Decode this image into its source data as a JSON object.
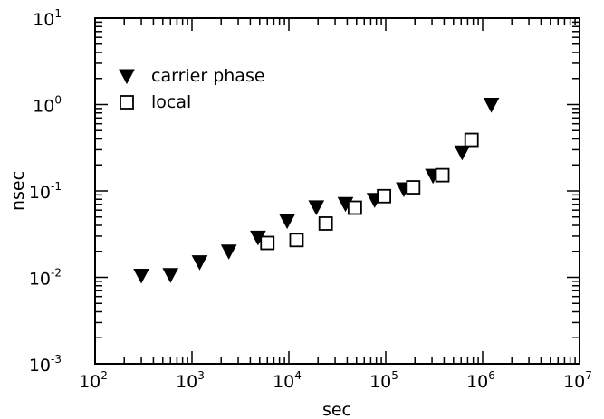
{
  "chart_data": {
    "type": "scatter",
    "xlabel": "sec",
    "ylabel": "nsec",
    "xscale": "log",
    "yscale": "log",
    "xlim": [
      100,
      10000000
    ],
    "ylim": [
      0.001,
      10
    ],
    "x_ticks": [
      {
        "base": "10",
        "exp": "2",
        "value": 100
      },
      {
        "base": "10",
        "exp": "3",
        "value": 1000
      },
      {
        "base": "10",
        "exp": "4",
        "value": 10000
      },
      {
        "base": "10",
        "exp": "5",
        "value": 100000
      },
      {
        "base": "10",
        "exp": "6",
        "value": 1000000
      },
      {
        "base": "10",
        "exp": "7",
        "value": 10000000
      }
    ],
    "y_ticks": [
      {
        "base": "10",
        "exp": "-3",
        "value": 0.001
      },
      {
        "base": "10",
        "exp": "-2",
        "value": 0.01
      },
      {
        "base": "10",
        "exp": "-1",
        "value": 0.1
      },
      {
        "base": "10",
        "exp": "0",
        "value": 1
      },
      {
        "base": "10",
        "exp": "1",
        "value": 10
      }
    ],
    "grid": false,
    "legend_position": "top-left",
    "series": [
      {
        "name": "carrier phase",
        "marker": "filled-down-triangle",
        "color": "#000000",
        "points": [
          {
            "x": 300,
            "y": 0.0105
          },
          {
            "x": 600,
            "y": 0.0107
          },
          {
            "x": 1200,
            "y": 0.015
          },
          {
            "x": 2400,
            "y": 0.02
          },
          {
            "x": 4800,
            "y": 0.029
          },
          {
            "x": 9600,
            "y": 0.045
          },
          {
            "x": 19200,
            "y": 0.065
          },
          {
            "x": 38400,
            "y": 0.071
          },
          {
            "x": 76800,
            "y": 0.079
          },
          {
            "x": 153600,
            "y": 0.105
          },
          {
            "x": 307200,
            "y": 0.15
          },
          {
            "x": 614400,
            "y": 0.28
          },
          {
            "x": 1228800,
            "y": 1.0
          }
        ]
      },
      {
        "name": "local",
        "marker": "open-square",
        "color": "#000000",
        "points": [
          {
            "x": 6000,
            "y": 0.025
          },
          {
            "x": 12000,
            "y": 0.027
          },
          {
            "x": 24000,
            "y": 0.042
          },
          {
            "x": 48000,
            "y": 0.064
          },
          {
            "x": 96000,
            "y": 0.087
          },
          {
            "x": 192000,
            "y": 0.11
          },
          {
            "x": 384000,
            "y": 0.152
          },
          {
            "x": 768000,
            "y": 0.39
          }
        ]
      }
    ]
  }
}
